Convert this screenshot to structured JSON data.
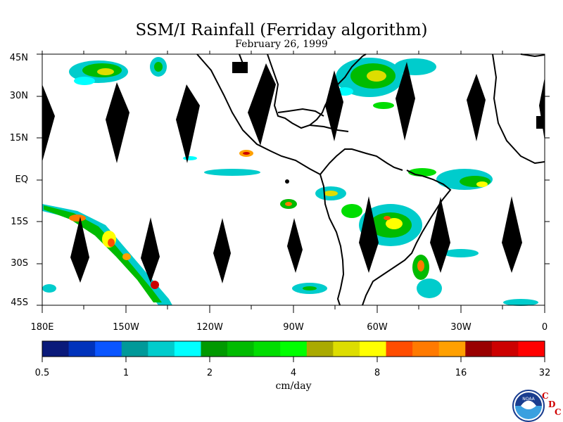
{
  "title": "SSM/I Rainfall (Ferriday algorithm)",
  "date": "February 26, 1999",
  "lat_labels": [
    "45N",
    "30N",
    "15N",
    "EQ",
    "15S",
    "30S",
    "45S"
  ],
  "lon_labels": [
    "180E",
    "150W",
    "120W",
    "90W",
    "60W",
    "30W",
    "0"
  ],
  "colorbar": {
    "colors": [
      "#0a1a7a",
      "#0033bb",
      "#0a55ff",
      "#009999",
      "#00cccc",
      "#00ffff",
      "#009900",
      "#00bb00",
      "#00dd00",
      "#00ff00",
      "#aaaa00",
      "#dddd00",
      "#ffff00",
      "#ff4d00",
      "#ff7a00",
      "#ffa000",
      "#990000",
      "#cc0000",
      "#ff0000"
    ],
    "tick_labels": [
      "0.5",
      "1",
      "2",
      "4",
      "8",
      "16",
      "32"
    ],
    "units": "cm/day"
  },
  "logo": {
    "text": "NOAA",
    "letters": [
      "C",
      "D",
      "C"
    ]
  }
}
